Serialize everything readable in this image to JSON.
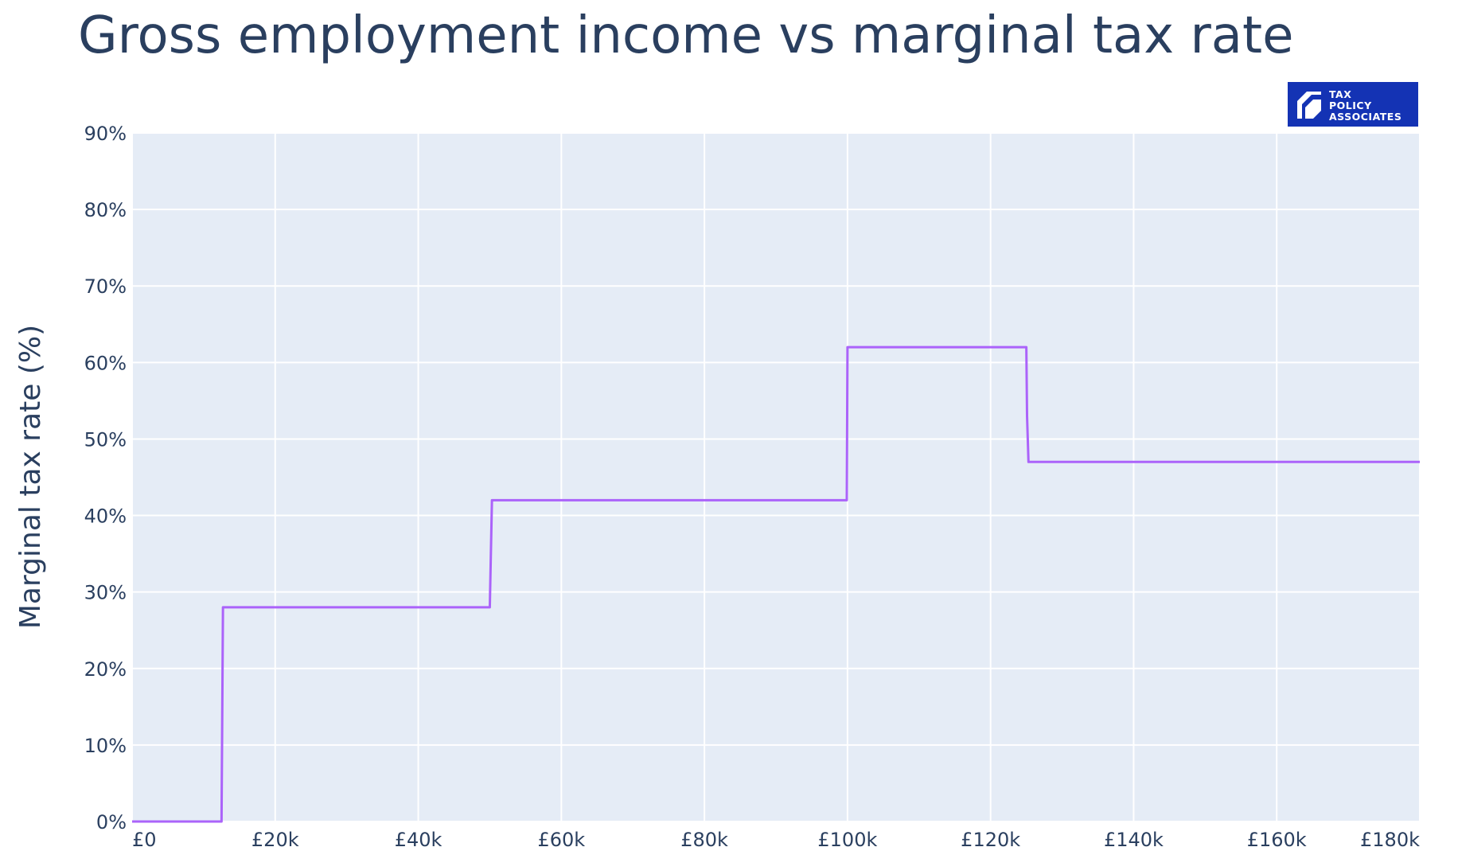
{
  "title": "Gross employment income vs marginal tax rate",
  "logo": {
    "lines": [
      "TAX",
      "POLICY",
      "ASSOCIATES"
    ],
    "color": "#1433b4"
  },
  "chart_data": {
    "type": "line",
    "title": "Gross employment income vs marginal tax rate",
    "xlabel": "",
    "ylabel": "Marginal tax rate (%)",
    "xlim": [
      0,
      180000
    ],
    "ylim": [
      0,
      90
    ],
    "grid": true,
    "legend": "none",
    "line_color": "#ab63fa",
    "plot_bg": "#e5ecf6",
    "x_ticks": [
      {
        "value": 0,
        "label": "£0"
      },
      {
        "value": 20000,
        "label": "£20k"
      },
      {
        "value": 40000,
        "label": "£40k"
      },
      {
        "value": 60000,
        "label": "£60k"
      },
      {
        "value": 80000,
        "label": "£80k"
      },
      {
        "value": 100000,
        "label": "£100k"
      },
      {
        "value": 120000,
        "label": "£120k"
      },
      {
        "value": 140000,
        "label": "£140k"
      },
      {
        "value": 160000,
        "label": "£160k"
      },
      {
        "value": 180000,
        "label": "£180k"
      }
    ],
    "y_ticks": [
      {
        "value": 0,
        "label": "0%"
      },
      {
        "value": 10,
        "label": "10%"
      },
      {
        "value": 20,
        "label": "20%"
      },
      {
        "value": 30,
        "label": "30%"
      },
      {
        "value": 40,
        "label": "40%"
      },
      {
        "value": 50,
        "label": "50%"
      },
      {
        "value": 60,
        "label": "60%"
      },
      {
        "value": 70,
        "label": "70%"
      },
      {
        "value": 80,
        "label": "80%"
      },
      {
        "value": 90,
        "label": "90%"
      }
    ],
    "series": [
      {
        "x": [
          0,
          12500,
          12700,
          50000,
          50300,
          99900,
          100000,
          125000,
          125100,
          125300,
          180000
        ],
        "y": [
          0,
          0,
          28,
          28,
          42,
          42,
          62,
          62,
          53,
          47,
          47
        ]
      }
    ]
  }
}
